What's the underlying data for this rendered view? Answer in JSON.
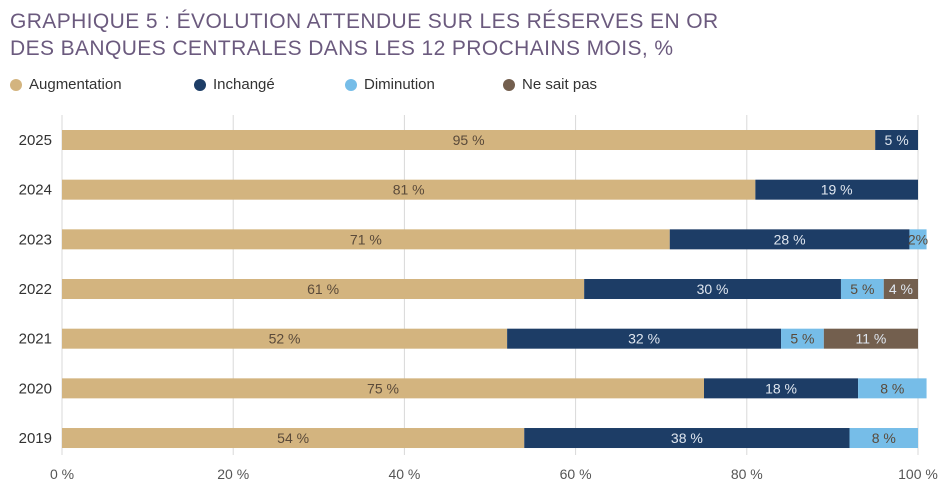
{
  "title_lines": [
    "GRAPHIQUE 5 : ÉVOLUTION ATTENDUE SUR LES RÉSERVES EN OR",
    "DES BANQUES CENTRALES DANS LES 12 PROCHAINS MOIS, %"
  ],
  "chart_data": {
    "type": "bar",
    "orientation": "horizontal",
    "stacked": true,
    "title": "GRAPHIQUE 5 : ÉVOLUTION ATTENDUE SUR LES RÉSERVES EN OR DES BANQUES CENTRALES DANS LES 12 PROCHAINS MOIS, %",
    "categories": [
      "2025",
      "2024",
      "2023",
      "2022",
      "2021",
      "2020",
      "2019"
    ],
    "series": [
      {
        "name": "Augmentation",
        "color": "#d3b47f",
        "values": [
          95,
          81,
          71,
          61,
          52,
          75,
          54
        ],
        "labels": [
          "95 %",
          "81 %",
          "71 %",
          "61 %",
          "52 %",
          "75 %",
          "54 %"
        ]
      },
      {
        "name": "Inchangé",
        "color": "#1d3d66",
        "values": [
          5,
          19,
          28,
          30,
          32,
          18,
          38
        ],
        "labels": [
          "5 %",
          "19 %",
          "28 %",
          "30 %",
          "32 %",
          "18 %",
          "38 %"
        ]
      },
      {
        "name": "Diminution",
        "color": "#76bde8",
        "values": [
          0,
          0,
          2,
          5,
          5,
          8,
          8
        ],
        "labels": [
          "",
          "",
          "2%",
          "5 %",
          "5 %",
          "8 %",
          "8 %"
        ]
      },
      {
        "name": "Ne sait pas",
        "color": "#735f4e",
        "values": [
          0,
          0,
          0,
          4,
          11,
          0,
          0
        ],
        "labels": [
          "",
          "",
          "",
          "4 %",
          "11 %",
          "",
          ""
        ]
      }
    ],
    "xlim": [
      0,
      100
    ],
    "xticks": [
      0,
      20,
      40,
      60,
      80,
      100
    ],
    "xtick_labels": [
      "0 %",
      "20 %",
      "40 %",
      "60 %",
      "80 %",
      "100 %"
    ],
    "grid": "vertical",
    "legend_position": "top-left",
    "label_colors": {
      "light": "#5a4a3a",
      "dark": "#dfe6ef"
    }
  }
}
